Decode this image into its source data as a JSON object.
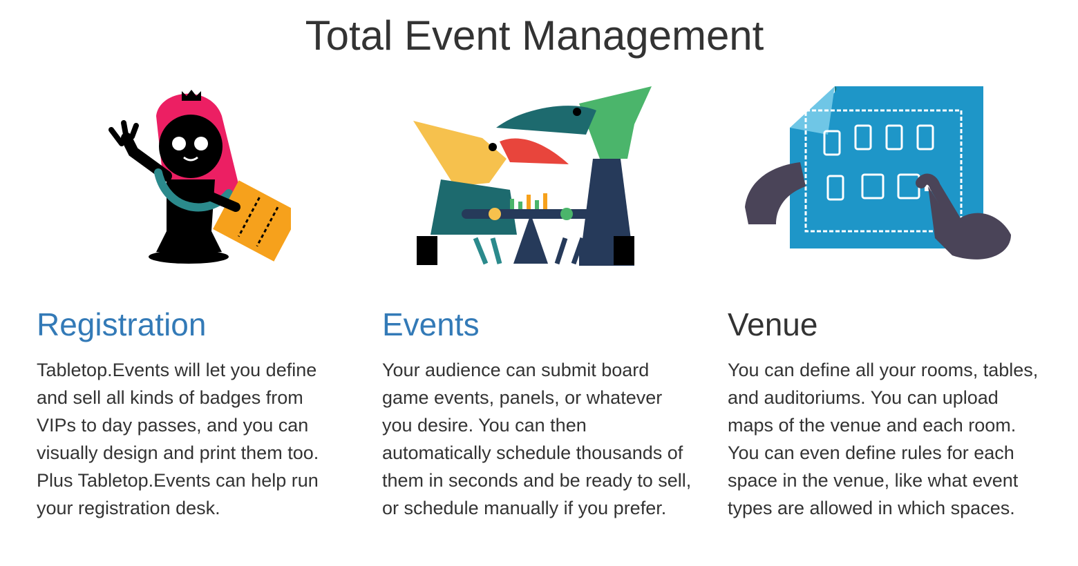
{
  "page": {
    "title": "Total Event Management"
  },
  "features": [
    {
      "heading": "Registration",
      "heading_is_link": true,
      "illustration_icon": "badge-holder-illustration",
      "body": "Tabletop.Events will let you define and sell all kinds of badges from VIPs to day passes, and you can visually design and print them too. Plus Tabletop.Events can help run your registration desk."
    },
    {
      "heading": "Events",
      "heading_is_link": true,
      "illustration_icon": "board-game-players-illustration",
      "body": "Your audience can submit board game events, panels, or whatever you desire. You can then automatically schedule thousands of them in seconds and be ready to sell, or schedule manually if you prefer."
    },
    {
      "heading": "Venue",
      "heading_is_link": false,
      "illustration_icon": "venue-map-illustration",
      "body": "You can define all your rooms, tables, and auditoriums. You can upload maps of the venue and each room. You can even define rules for each space in the venue, like what event types are allowed in which spaces."
    }
  ],
  "colors": {
    "link": "#337ab7",
    "text": "#333333",
    "pink": "#ec1f63",
    "orange": "#f6a11c",
    "teal": "#2b8a8c",
    "blueprint": "#1e96c8"
  }
}
